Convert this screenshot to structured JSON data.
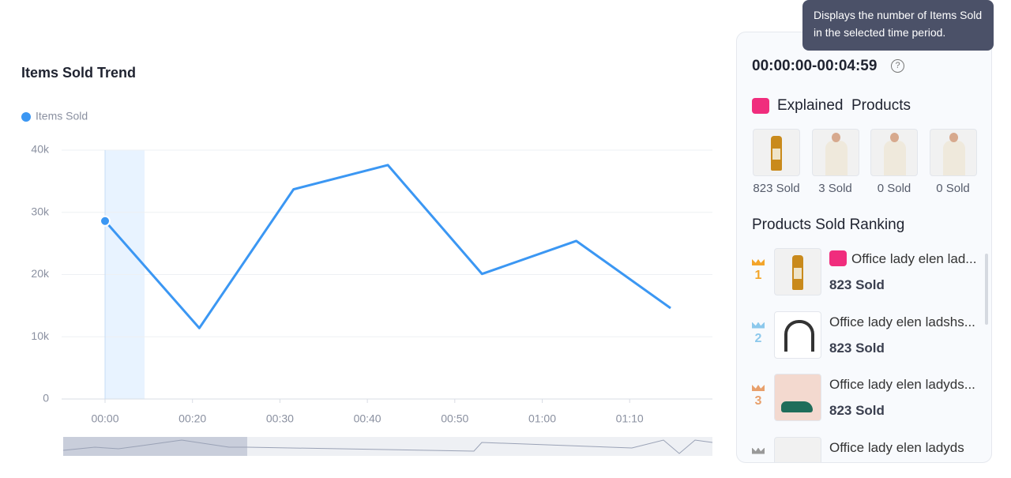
{
  "chart_data": {
    "type": "line",
    "title": "Items Sold Trend",
    "x_tick_labels": [
      "00:00",
      "00:20",
      "00:30",
      "00:40",
      "00:50",
      "01:00",
      "01:10"
    ],
    "series": [
      {
        "name": "Items Sold",
        "color": "#3b97f3",
        "values": [
          28600,
          11400,
          33700,
          37600,
          20100,
          25400,
          14600
        ]
      }
    ],
    "ylim": [
      0,
      40000
    ],
    "yticks": [
      0,
      {
        "value": 10000,
        "label": "10k"
      },
      {
        "value": 20000,
        "label": "20k"
      },
      {
        "value": 30000,
        "label": "30k"
      },
      {
        "value": 40000,
        "label": "40k"
      }
    ],
    "grid": true
  },
  "tooltip": "Displays the number of Items Sold in the selected time period.",
  "panel": {
    "time_range": "00:00:00-00:04:59",
    "explained_title": "Explained  Products",
    "explained": [
      "823 Sold",
      "3 Sold",
      "0 Sold",
      "0 Sold"
    ],
    "ranking_title": "Products Sold Ranking",
    "ranking": [
      {
        "rank": "1",
        "name": "Office lady elen lad...",
        "sold": "823 Sold"
      },
      {
        "rank": "2",
        "name": "Office lady elen ladshs...",
        "sold": "823 Sold"
      },
      {
        "rank": "3",
        "name": "Office lady elen ladyds...",
        "sold": "823 Sold"
      },
      {
        "rank": "",
        "name": "Office lady elen ladyds",
        "sold": ""
      }
    ]
  }
}
